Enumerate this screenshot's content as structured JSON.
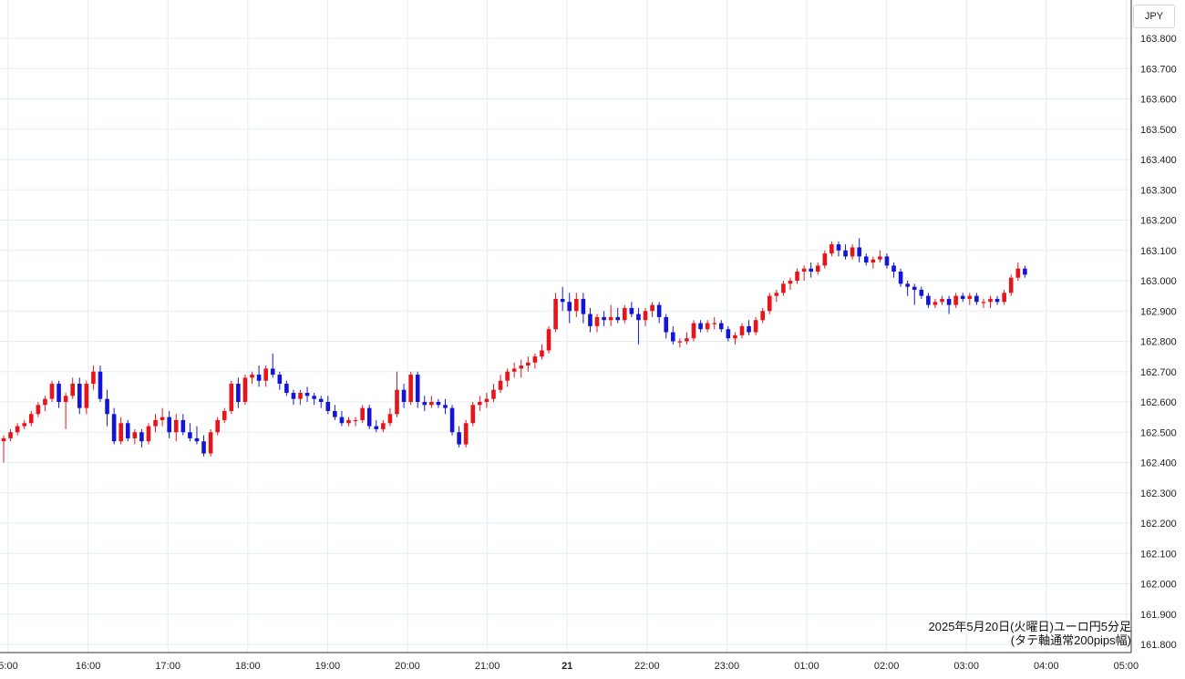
{
  "currency": "JPY",
  "caption": {
    "line1": "2025年5月20日(火曜日)ユーロ円5分足",
    "line2": "(タテ軸通常200pips幅)"
  },
  "colors": {
    "up": "#e8141a",
    "down": "#1414d8",
    "grid": "#e3eef4",
    "axis": "#333333"
  },
  "chart_data": {
    "type": "candlestick",
    "interval_minutes": 5,
    "ylim": [
      161.75,
      163.85
    ],
    "y_ticks": [
      "163.800",
      "163.700",
      "163.600",
      "163.500",
      "163.400",
      "163.300",
      "163.200",
      "163.100",
      "163.000",
      "162.900",
      "162.800",
      "162.700",
      "162.600",
      "162.500",
      "162.400",
      "162.300",
      "162.200",
      "162.100",
      "162.000",
      "161.900",
      "161.800"
    ],
    "x_ticks": [
      "5:00",
      "16:00",
      "17:00",
      "18:00",
      "19:00",
      "20:00",
      "21:00",
      "21",
      "22:00",
      "23:00",
      "01:00",
      "02:00",
      "03:00",
      "04:00",
      "05:00"
    ],
    "x_tick_bold": "21",
    "ohlc": [
      [
        162.47,
        162.49,
        162.4,
        162.48
      ],
      [
        162.48,
        162.51,
        162.47,
        162.5
      ],
      [
        162.5,
        162.53,
        162.49,
        162.52
      ],
      [
        162.52,
        162.54,
        162.51,
        162.53
      ],
      [
        162.53,
        162.57,
        162.52,
        162.56
      ],
      [
        162.56,
        162.6,
        162.55,
        162.59
      ],
      [
        162.59,
        162.62,
        162.57,
        162.61
      ],
      [
        162.61,
        162.67,
        162.6,
        162.66
      ],
      [
        162.66,
        162.67,
        162.58,
        162.6
      ],
      [
        162.6,
        162.63,
        162.51,
        162.62
      ],
      [
        162.62,
        162.68,
        162.61,
        162.66
      ],
      [
        162.66,
        162.68,
        162.56,
        162.58
      ],
      [
        162.58,
        162.67,
        162.56,
        162.66
      ],
      [
        162.66,
        162.72,
        162.64,
        162.7
      ],
      [
        162.7,
        162.72,
        162.6,
        162.61
      ],
      [
        162.61,
        162.64,
        162.52,
        162.56
      ],
      [
        162.56,
        162.58,
        162.46,
        162.47
      ],
      [
        162.47,
        162.55,
        162.46,
        162.53
      ],
      [
        162.53,
        162.54,
        162.47,
        162.48
      ],
      [
        162.48,
        162.51,
        162.46,
        162.5
      ],
      [
        162.5,
        162.51,
        162.45,
        162.47
      ],
      [
        162.47,
        162.53,
        162.46,
        162.52
      ],
      [
        162.52,
        162.56,
        162.5,
        162.54
      ],
      [
        162.54,
        162.58,
        162.52,
        162.55
      ],
      [
        162.55,
        162.57,
        162.48,
        162.5
      ],
      [
        162.5,
        162.56,
        162.47,
        162.54
      ],
      [
        162.54,
        162.56,
        162.49,
        162.5
      ],
      [
        162.5,
        162.53,
        162.47,
        162.48
      ],
      [
        162.48,
        162.52,
        162.46,
        162.47
      ],
      [
        162.47,
        162.49,
        162.42,
        162.43
      ],
      [
        162.43,
        162.51,
        162.42,
        162.5
      ],
      [
        162.5,
        162.55,
        162.49,
        162.54
      ],
      [
        162.54,
        162.58,
        162.53,
        162.57
      ],
      [
        162.57,
        162.67,
        162.56,
        162.66
      ],
      [
        162.66,
        162.68,
        162.58,
        162.6
      ],
      [
        162.6,
        162.69,
        162.59,
        162.68
      ],
      [
        162.68,
        162.7,
        162.66,
        162.69
      ],
      [
        162.69,
        162.72,
        162.65,
        162.67
      ],
      [
        162.67,
        162.72,
        162.65,
        162.71
      ],
      [
        162.71,
        162.76,
        162.68,
        162.69
      ],
      [
        162.69,
        162.7,
        162.64,
        162.66
      ],
      [
        162.66,
        162.67,
        162.62,
        162.63
      ],
      [
        162.63,
        162.64,
        162.59,
        162.61
      ],
      [
        162.61,
        162.64,
        162.59,
        162.63
      ],
      [
        162.63,
        162.65,
        162.6,
        162.62
      ],
      [
        162.62,
        162.63,
        162.59,
        162.61
      ],
      [
        162.61,
        162.62,
        162.58,
        162.6
      ],
      [
        162.6,
        162.62,
        162.56,
        162.57
      ],
      [
        162.57,
        162.59,
        162.54,
        162.55
      ],
      [
        162.55,
        162.57,
        162.52,
        162.53
      ],
      [
        162.53,
        162.55,
        162.52,
        162.54
      ],
      [
        162.54,
        162.55,
        162.52,
        162.54
      ],
      [
        162.54,
        162.59,
        162.53,
        162.58
      ],
      [
        162.58,
        162.59,
        162.51,
        162.52
      ],
      [
        162.52,
        162.54,
        162.5,
        162.51
      ],
      [
        162.51,
        162.54,
        162.5,
        162.53
      ],
      [
        162.53,
        162.58,
        162.52,
        162.56
      ],
      [
        162.56,
        162.7,
        162.55,
        162.64
      ],
      [
        162.64,
        162.66,
        162.58,
        162.6
      ],
      [
        162.6,
        162.7,
        162.59,
        162.69
      ],
      [
        162.69,
        162.7,
        162.58,
        162.6
      ],
      [
        162.6,
        162.62,
        162.57,
        162.59
      ],
      [
        162.59,
        162.62,
        162.58,
        162.6
      ],
      [
        162.6,
        162.61,
        162.58,
        162.59
      ],
      [
        162.59,
        162.61,
        162.56,
        162.58
      ],
      [
        162.58,
        162.59,
        162.49,
        162.5
      ],
      [
        162.5,
        162.52,
        162.45,
        162.46
      ],
      [
        162.46,
        162.54,
        162.45,
        162.53
      ],
      [
        162.53,
        162.6,
        162.52,
        162.59
      ],
      [
        162.59,
        162.62,
        162.57,
        162.6
      ],
      [
        162.6,
        162.63,
        162.58,
        162.61
      ],
      [
        162.61,
        162.66,
        162.6,
        162.64
      ],
      [
        162.64,
        162.69,
        162.63,
        162.67
      ],
      [
        162.67,
        162.71,
        162.65,
        162.7
      ],
      [
        162.7,
        162.73,
        162.68,
        162.71
      ],
      [
        162.71,
        162.74,
        162.68,
        162.72
      ],
      [
        162.72,
        162.75,
        162.7,
        162.73
      ],
      [
        162.73,
        162.76,
        162.71,
        162.75
      ],
      [
        162.75,
        162.79,
        162.74,
        162.77
      ],
      [
        162.77,
        162.85,
        162.76,
        162.84
      ],
      [
        162.84,
        162.96,
        162.83,
        162.94
      ],
      [
        162.94,
        162.98,
        162.9,
        162.93
      ],
      [
        162.93,
        162.96,
        162.86,
        162.9
      ],
      [
        162.9,
        162.96,
        162.88,
        162.94
      ],
      [
        162.94,
        162.96,
        162.86,
        162.89
      ],
      [
        162.89,
        162.91,
        162.83,
        162.85
      ],
      [
        162.85,
        162.89,
        162.83,
        162.88
      ],
      [
        162.88,
        162.9,
        162.85,
        162.87
      ],
      [
        162.87,
        162.92,
        162.85,
        162.88
      ],
      [
        162.88,
        162.91,
        162.86,
        162.87
      ],
      [
        162.87,
        162.92,
        162.86,
        162.91
      ],
      [
        162.91,
        162.93,
        162.88,
        162.89
      ],
      [
        162.89,
        162.91,
        162.79,
        162.87
      ],
      [
        162.87,
        162.91,
        162.85,
        162.9
      ],
      [
        162.9,
        162.93,
        162.88,
        162.92
      ],
      [
        162.92,
        162.93,
        162.86,
        162.88
      ],
      [
        162.88,
        162.89,
        162.81,
        162.83
      ],
      [
        162.83,
        162.85,
        162.79,
        162.8
      ],
      [
        162.8,
        162.81,
        162.78,
        162.8
      ],
      [
        162.8,
        162.83,
        162.79,
        162.81
      ],
      [
        162.81,
        162.87,
        162.8,
        162.86
      ],
      [
        162.86,
        162.87,
        162.83,
        162.84
      ],
      [
        162.84,
        162.87,
        162.83,
        162.86
      ],
      [
        162.86,
        162.88,
        162.84,
        162.86
      ],
      [
        162.86,
        162.87,
        162.83,
        162.84
      ],
      [
        162.84,
        162.85,
        162.8,
        162.81
      ],
      [
        162.81,
        162.83,
        162.79,
        162.82
      ],
      [
        162.82,
        162.86,
        162.81,
        162.85
      ],
      [
        162.85,
        162.87,
        162.82,
        162.83
      ],
      [
        162.83,
        162.88,
        162.82,
        162.87
      ],
      [
        162.87,
        162.91,
        162.86,
        162.9
      ],
      [
        162.9,
        162.96,
        162.89,
        162.95
      ],
      [
        162.95,
        162.97,
        162.93,
        162.96
      ],
      [
        162.96,
        163.0,
        162.95,
        162.99
      ],
      [
        162.99,
        163.01,
        162.97,
        163.0
      ],
      [
        163.0,
        163.04,
        162.99,
        163.03
      ],
      [
        163.03,
        163.05,
        163.0,
        163.04
      ],
      [
        163.04,
        163.06,
        163.01,
        163.03
      ],
      [
        163.03,
        163.06,
        163.02,
        163.05
      ],
      [
        163.05,
        163.1,
        163.04,
        163.09
      ],
      [
        163.09,
        163.13,
        163.08,
        163.12
      ],
      [
        163.12,
        163.13,
        163.08,
        163.1
      ],
      [
        163.1,
        163.12,
        163.07,
        163.08
      ],
      [
        163.08,
        163.12,
        163.07,
        163.11
      ],
      [
        163.11,
        163.14,
        163.06,
        163.08
      ],
      [
        163.08,
        163.09,
        163.05,
        163.06
      ],
      [
        163.06,
        163.08,
        163.04,
        163.07
      ],
      [
        163.07,
        163.1,
        163.06,
        163.08
      ],
      [
        163.08,
        163.09,
        163.04,
        163.05
      ],
      [
        163.05,
        163.06,
        163.01,
        163.03
      ],
      [
        163.03,
        163.04,
        162.98,
        162.99
      ],
      [
        162.99,
        163.0,
        162.95,
        162.98
      ],
      [
        162.98,
        162.99,
        162.92,
        162.97
      ],
      [
        162.97,
        162.98,
        162.94,
        162.95
      ],
      [
        162.95,
        162.96,
        162.91,
        162.92
      ],
      [
        162.92,
        162.94,
        162.91,
        162.93
      ],
      [
        162.93,
        162.95,
        162.92,
        162.94
      ],
      [
        162.94,
        162.95,
        162.89,
        162.92
      ],
      [
        162.92,
        162.96,
        162.91,
        162.95
      ],
      [
        162.95,
        162.96,
        162.93,
        162.94
      ],
      [
        162.94,
        162.96,
        162.92,
        162.95
      ],
      [
        162.95,
        162.96,
        162.92,
        162.93
      ],
      [
        162.93,
        162.94,
        162.91,
        162.93
      ],
      [
        162.93,
        162.95,
        162.91,
        162.94
      ],
      [
        162.94,
        162.95,
        162.92,
        162.93
      ],
      [
        162.93,
        162.97,
        162.92,
        162.96
      ],
      [
        162.96,
        163.02,
        162.95,
        163.01
      ],
      [
        163.01,
        163.06,
        163.0,
        163.04
      ],
      [
        163.04,
        163.05,
        163.01,
        163.02
      ]
    ]
  }
}
